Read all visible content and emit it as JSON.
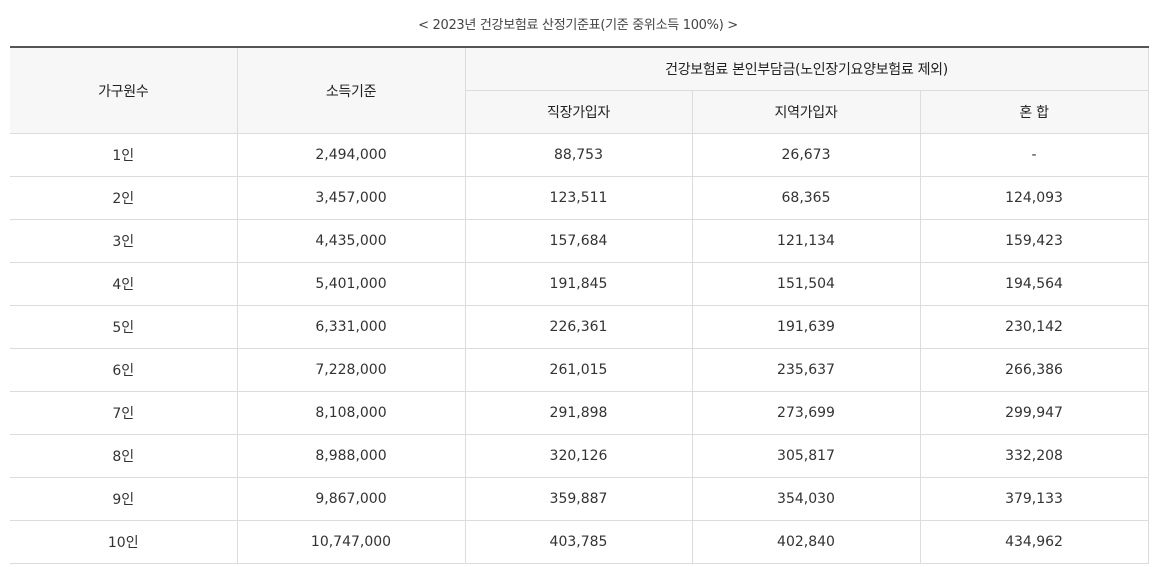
{
  "caption": "< 2023년 건강보험료 산정기준표(기준 중위소득 100%) >",
  "table": {
    "headers": {
      "household": "가구원수",
      "income": "소득기준",
      "premium_group": "건강보험료 본인부담금(노인장기요양보험료 제외)",
      "workplace": "직장가입자",
      "regional": "지역가입자",
      "mixed": "혼 합"
    },
    "rows": [
      {
        "household": "1인",
        "income": "2,494,000",
        "workplace": "88,753",
        "regional": "26,673",
        "mixed": "-"
      },
      {
        "household": "2인",
        "income": "3,457,000",
        "workplace": "123,511",
        "regional": "68,365",
        "mixed": "124,093"
      },
      {
        "household": "3인",
        "income": "4,435,000",
        "workplace": "157,684",
        "regional": "121,134",
        "mixed": "159,423"
      },
      {
        "household": "4인",
        "income": "5,401,000",
        "workplace": "191,845",
        "regional": "151,504",
        "mixed": "194,564"
      },
      {
        "household": "5인",
        "income": "6,331,000",
        "workplace": "226,361",
        "regional": "191,639",
        "mixed": "230,142"
      },
      {
        "household": "6인",
        "income": "7,228,000",
        "workplace": "261,015",
        "regional": "235,637",
        "mixed": "266,386"
      },
      {
        "household": "7인",
        "income": "8,108,000",
        "workplace": "291,898",
        "regional": "273,699",
        "mixed": "299,947"
      },
      {
        "household": "8인",
        "income": "8,988,000",
        "workplace": "320,126",
        "regional": "305,817",
        "mixed": "332,208"
      },
      {
        "household": "9인",
        "income": "9,867,000",
        "workplace": "359,887",
        "regional": "354,030",
        "mixed": "379,133"
      },
      {
        "household": "10인",
        "income": "10,747,000",
        "workplace": "403,785",
        "regional": "402,840",
        "mixed": "434,962"
      }
    ]
  }
}
